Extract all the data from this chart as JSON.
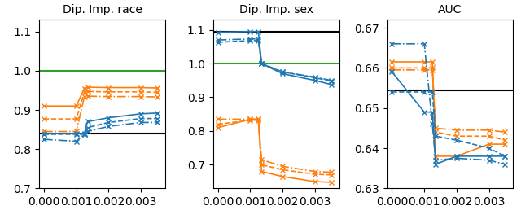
{
  "titles": [
    "Dip. Imp. race",
    "Dip. Imp. sex",
    "AUC"
  ],
  "x": [
    0.0,
    0.001,
    0.00125,
    0.00135,
    0.002,
    0.003,
    0.0035
  ],
  "subplot1": {
    "ylim": [
      0.7,
      1.13
    ],
    "yticks": [
      0.7,
      0.8,
      0.9,
      1.0,
      1.1
    ],
    "hline_black": 0.84,
    "hline_green": 1.0,
    "orange_lines": [
      [
        0.91,
        0.91,
        0.955,
        0.958,
        0.957,
        0.957,
        0.956
      ],
      [
        0.877,
        0.877,
        0.945,
        0.947,
        0.946,
        0.946,
        0.945
      ],
      [
        0.845,
        0.845,
        0.933,
        0.935,
        0.934,
        0.934,
        0.933
      ]
    ],
    "blue_lines": [
      [
        0.84,
        0.84,
        0.84,
        0.87,
        0.88,
        0.89,
        0.892
      ],
      [
        0.838,
        0.838,
        0.838,
        0.855,
        0.868,
        0.878,
        0.878
      ],
      [
        0.825,
        0.82,
        0.838,
        0.845,
        0.858,
        0.868,
        0.868
      ]
    ]
  },
  "subplot2": {
    "ylim": [
      0.63,
      1.13
    ],
    "yticks": [
      0.7,
      0.8,
      0.9,
      1.0,
      1.1
    ],
    "hline_black": 1.095,
    "hline_green": 1.0,
    "orange_lines": [
      [
        0.81,
        0.835,
        0.835,
        0.68,
        0.665,
        0.65,
        0.648
      ],
      [
        0.82,
        0.832,
        0.832,
        0.7,
        0.685,
        0.672,
        0.67
      ],
      [
        0.835,
        0.835,
        0.835,
        0.715,
        0.695,
        0.68,
        0.678
      ]
    ],
    "blue_lines": [
      [
        1.093,
        1.095,
        1.095,
        1.0,
        0.97,
        0.95,
        0.938
      ],
      [
        1.063,
        1.068,
        1.068,
        1.0,
        0.975,
        0.958,
        0.948
      ],
      [
        1.07,
        1.073,
        1.073,
        1.0,
        0.975,
        0.96,
        0.95
      ]
    ]
  },
  "subplot3": {
    "ylim": [
      0.63,
      0.672
    ],
    "yticks": [
      0.63,
      0.64,
      0.65,
      0.66,
      0.67
    ],
    "hline_black": 0.6545,
    "orange_lines": [
      [
        0.6615,
        0.6615,
        0.6615,
        0.638,
        0.638,
        0.641,
        0.641
      ],
      [
        0.66,
        0.66,
        0.66,
        0.644,
        0.643,
        0.643,
        0.642
      ],
      [
        0.6595,
        0.6595,
        0.6595,
        0.645,
        0.6445,
        0.6445,
        0.644
      ]
    ],
    "blue_lines": [
      [
        0.659,
        0.649,
        0.649,
        0.636,
        0.638,
        0.638,
        0.638
      ],
      [
        0.654,
        0.654,
        0.654,
        0.643,
        0.642,
        0.64,
        0.638
      ],
      [
        0.666,
        0.666,
        0.646,
        0.637,
        0.6375,
        0.637,
        0.636
      ]
    ]
  },
  "orange_color": "#ff7f0e",
  "blue_color": "#1f77b4",
  "green_color": "#2ca02c",
  "marker": "x",
  "markersize": 4,
  "linewidth": 1.2,
  "line_styles": [
    "-",
    "--",
    "-."
  ]
}
